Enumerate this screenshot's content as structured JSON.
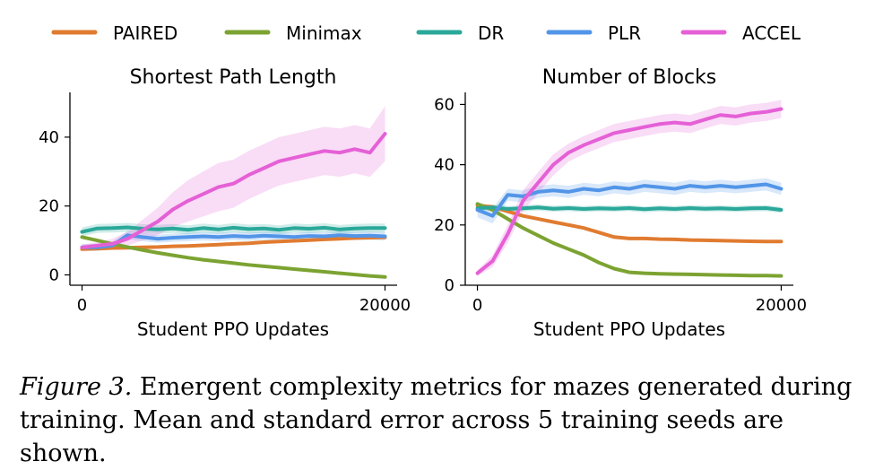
{
  "legend": [
    {
      "name": "PAIRED",
      "color": "#e07b30"
    },
    {
      "name": "Minimax",
      "color": "#7ca332"
    },
    {
      "name": "DR",
      "color": "#2aa89a"
    },
    {
      "name": "PLR",
      "color": "#5295e8"
    },
    {
      "name": "ACCEL",
      "color": "#e560d6"
    }
  ],
  "caption": {
    "label": "Figure 3.",
    "text": " Emergent complexity metrics for mazes generated during training. Mean and standard error across 5 training seeds are shown."
  },
  "chart_data": [
    {
      "type": "line",
      "title": "Shortest Path Length",
      "xlabel": "Student PPO Updates",
      "ylabel": "",
      "xlim": [
        -800,
        20800
      ],
      "ylim": [
        -3,
        53
      ],
      "xticks": [
        0,
        20000
      ],
      "yticks": [
        0,
        20,
        40
      ],
      "x": [
        0,
        1000,
        2000,
        3000,
        4000,
        5000,
        6000,
        7000,
        8000,
        9000,
        10000,
        11000,
        12000,
        13000,
        14000,
        15000,
        16000,
        17000,
        18000,
        19000,
        20000
      ],
      "series": [
        {
          "name": "PAIRED",
          "color": "#e07b30",
          "values": [
            7.5,
            7.6,
            7.8,
            7.9,
            8.0,
            8.1,
            8.3,
            8.4,
            8.6,
            8.8,
            9.0,
            9.2,
            9.5,
            9.7,
            9.9,
            10.1,
            10.3,
            10.5,
            10.7,
            10.8,
            10.9
          ],
          "err": [
            0.3,
            0.3,
            0.3,
            0.3,
            0.3,
            0.3,
            0.3,
            0.3,
            0.3,
            0.3,
            0.3,
            0.3,
            0.3,
            0.3,
            0.3,
            0.3,
            0.3,
            0.3,
            0.3,
            0.3,
            0.3
          ]
        },
        {
          "name": "Minimax",
          "color": "#7ca332",
          "values": [
            11.0,
            10.0,
            9.0,
            8.1,
            7.2,
            6.4,
            5.7,
            5.0,
            4.4,
            3.9,
            3.4,
            2.9,
            2.5,
            2.1,
            1.7,
            1.3,
            0.9,
            0.5,
            0.1,
            -0.3,
            -0.6
          ],
          "err": [
            0.3,
            0.3,
            0.3,
            0.3,
            0.3,
            0.3,
            0.3,
            0.3,
            0.3,
            0.3,
            0.3,
            0.3,
            0.3,
            0.3,
            0.3,
            0.3,
            0.3,
            0.3,
            0.3,
            0.3,
            0.3
          ]
        },
        {
          "name": "DR",
          "color": "#2aa89a",
          "values": [
            12.5,
            13.5,
            13.6,
            13.8,
            13.4,
            13.2,
            13.5,
            13.1,
            13.6,
            13.2,
            13.7,
            13.3,
            13.5,
            13.1,
            13.6,
            13.4,
            13.7,
            13.2,
            13.5,
            13.6,
            13.6
          ],
          "err": [
            1.3,
            1.3,
            1.3,
            1.3,
            1.3,
            1.3,
            1.3,
            1.3,
            1.3,
            1.3,
            1.3,
            1.3,
            1.3,
            1.3,
            1.3,
            1.3,
            1.3,
            1.3,
            1.3,
            1.3,
            1.3
          ]
        },
        {
          "name": "PLR",
          "color": "#5295e8",
          "values": [
            8.0,
            8.0,
            8.5,
            11.5,
            11.0,
            10.5,
            10.8,
            11.0,
            11.2,
            11.0,
            11.3,
            11.1,
            11.4,
            11.2,
            11.0,
            11.3,
            11.2,
            11.5,
            11.3,
            11.4,
            11.2
          ],
          "err": [
            1.0,
            1.0,
            1.2,
            1.2,
            1.2,
            1.2,
            1.2,
            1.2,
            1.2,
            1.2,
            1.2,
            1.2,
            1.2,
            1.2,
            1.2,
            1.2,
            1.2,
            1.2,
            1.2,
            1.2,
            1.2
          ]
        },
        {
          "name": "ACCEL",
          "color": "#e560d6",
          "values": [
            8.0,
            8.5,
            9.0,
            10.5,
            13.0,
            15.5,
            19.0,
            21.5,
            23.5,
            25.5,
            26.5,
            29.0,
            31.0,
            33.0,
            34.0,
            35.0,
            36.0,
            35.5,
            36.5,
            35.5,
            41.0
          ],
          "err": [
            0.8,
            1.0,
            1.5,
            2.0,
            3.0,
            4.0,
            5.0,
            6.0,
            6.5,
            7.0,
            7.0,
            7.0,
            7.0,
            7.0,
            7.0,
            7.0,
            7.0,
            7.0,
            7.0,
            7.0,
            8.0
          ]
        }
      ]
    },
    {
      "type": "line",
      "title": "Number of Blocks",
      "xlabel": "Student PPO Updates",
      "ylabel": "",
      "xlim": [
        -800,
        20800
      ],
      "ylim": [
        0,
        64
      ],
      "xticks": [
        0,
        20000
      ],
      "yticks": [
        0,
        20,
        40,
        60
      ],
      "x": [
        0,
        1000,
        2000,
        3000,
        4000,
        5000,
        6000,
        7000,
        8000,
        9000,
        10000,
        11000,
        12000,
        13000,
        14000,
        15000,
        16000,
        17000,
        18000,
        19000,
        20000
      ],
      "series": [
        {
          "name": "PAIRED",
          "color": "#e07b30",
          "values": [
            26.5,
            26.0,
            24.5,
            23.0,
            22.0,
            21.0,
            20.0,
            19.0,
            17.5,
            16.0,
            15.5,
            15.5,
            15.3,
            15.2,
            15.0,
            14.9,
            14.8,
            14.7,
            14.6,
            14.5,
            14.5
          ],
          "err": [
            0.5,
            0.5,
            0.5,
            0.5,
            0.5,
            0.5,
            0.5,
            0.5,
            0.5,
            0.5,
            0.5,
            0.5,
            0.5,
            0.5,
            0.5,
            0.5,
            0.5,
            0.5,
            0.5,
            0.5,
            0.5
          ]
        },
        {
          "name": "Minimax",
          "color": "#7ca332",
          "values": [
            27.0,
            25.0,
            22.0,
            19.0,
            16.5,
            14.0,
            12.0,
            10.0,
            7.5,
            5.5,
            4.3,
            4.0,
            3.8,
            3.7,
            3.6,
            3.5,
            3.4,
            3.3,
            3.2,
            3.2,
            3.1
          ],
          "err": [
            0.5,
            0.5,
            0.5,
            0.5,
            0.5,
            0.5,
            0.5,
            0.5,
            0.5,
            0.5,
            0.5,
            0.5,
            0.5,
            0.5,
            0.5,
            0.5,
            0.5,
            0.5,
            0.5,
            0.5,
            0.5
          ]
        },
        {
          "name": "DR",
          "color": "#2aa89a",
          "values": [
            25.5,
            25.8,
            25.3,
            25.5,
            25.8,
            25.4,
            25.6,
            25.3,
            25.5,
            25.4,
            25.6,
            25.2,
            25.5,
            25.3,
            25.6,
            25.4,
            25.5,
            25.3,
            25.5,
            25.6,
            25.0
          ],
          "err": [
            1.0,
            1.0,
            1.0,
            1.0,
            1.0,
            1.0,
            1.0,
            1.0,
            1.0,
            1.0,
            1.0,
            1.0,
            1.0,
            1.0,
            1.0,
            1.0,
            1.0,
            1.0,
            1.0,
            1.0,
            1.0
          ]
        },
        {
          "name": "PLR",
          "color": "#5295e8",
          "values": [
            25.0,
            23.0,
            30.0,
            29.5,
            31.0,
            31.5,
            31.0,
            32.0,
            31.5,
            32.5,
            32.0,
            33.0,
            32.5,
            32.0,
            33.0,
            32.5,
            33.0,
            32.5,
            33.0,
            33.5,
            32.0
          ],
          "err": [
            2.5,
            2.5,
            2.0,
            2.0,
            2.0,
            2.0,
            2.0,
            2.0,
            2.0,
            2.0,
            2.0,
            2.0,
            2.0,
            2.0,
            2.0,
            2.0,
            2.0,
            2.0,
            2.0,
            2.0,
            2.0
          ]
        },
        {
          "name": "ACCEL",
          "color": "#e560d6",
          "values": [
            4.0,
            8.0,
            17.0,
            28.0,
            34.0,
            40.0,
            44.0,
            46.5,
            48.5,
            50.5,
            51.5,
            52.5,
            53.5,
            54.0,
            53.5,
            55.0,
            56.5,
            56.0,
            57.0,
            57.5,
            58.5
          ],
          "err": [
            1.0,
            2.0,
            3.0,
            3.5,
            3.5,
            3.5,
            3.0,
            3.0,
            3.0,
            3.0,
            3.0,
            3.0,
            3.0,
            3.0,
            3.0,
            3.0,
            3.0,
            3.0,
            3.0,
            3.0,
            3.0
          ]
        }
      ]
    }
  ]
}
